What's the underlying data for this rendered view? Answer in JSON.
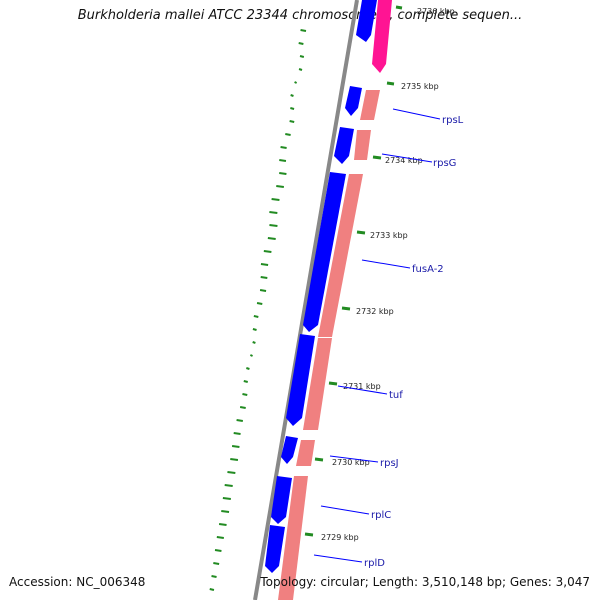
{
  "title": "Burkholderia mallei ATCC 23344 chromosome 1, complete sequen...",
  "accession": "Accession: NC_006348",
  "summary": "Topology: circular; Length: 3,510,148 bp; Genes: 3,047",
  "ticks": [
    {
      "label": "2736 kbp"
    },
    {
      "label": "2735 kbp"
    },
    {
      "label": "2734 kbp"
    },
    {
      "label": "2733 kbp"
    },
    {
      "label": "2732 kbp"
    },
    {
      "label": "2731 kbp"
    },
    {
      "label": "2730 kbp"
    },
    {
      "label": "2729 kbp"
    }
  ],
  "genes": [
    {
      "label": "rpsL"
    },
    {
      "label": "rpsG"
    },
    {
      "label": "fusA-2"
    },
    {
      "label": "tuf"
    },
    {
      "label": "rpsJ"
    },
    {
      "label": "rplC"
    },
    {
      "label": "rplD"
    }
  ],
  "colors": {
    "backbone": "#808080",
    "cds_forward": "#0000ff",
    "cds_reverse": "#f08080",
    "cds_highlight": "#ff1493",
    "gc_skew": "#228b22",
    "label_line": "#0000ff"
  }
}
